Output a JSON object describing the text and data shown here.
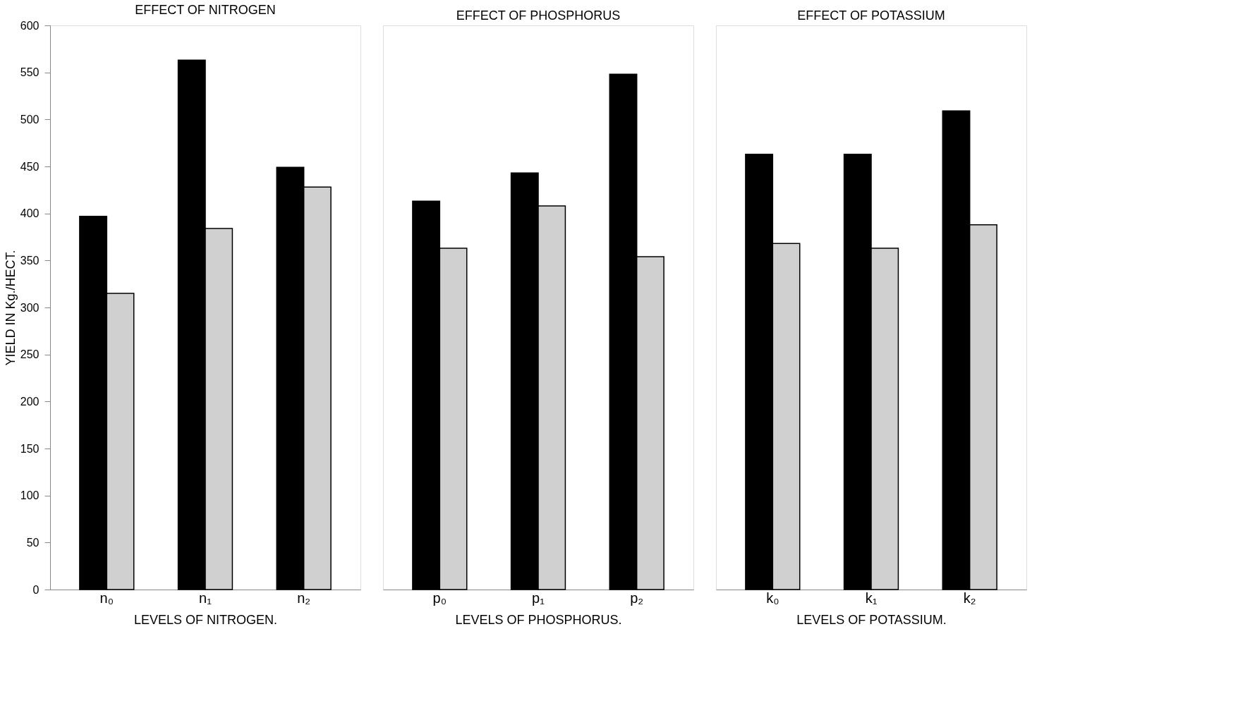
{
  "chart_data": [
    {
      "type": "bar",
      "title": "EFFECT OF NITROGEN",
      "xlabel": "LEVELS OF NITROGEN.",
      "ylabel": "YIELD IN Kg./HECT.",
      "categories": [
        "n₀",
        "n₁",
        "n₂"
      ],
      "ylim": [
        0,
        600
      ],
      "yticks": [
        0,
        50,
        100,
        150,
        200,
        250,
        300,
        350,
        400,
        450,
        500,
        550,
        600
      ],
      "grid": false,
      "legend": false,
      "series": [
        {
          "color": "#000000",
          "values": [
            397,
            563,
            449
          ]
        },
        {
          "color": "#d0d0d0",
          "values": [
            315,
            384,
            428
          ]
        }
      ]
    },
    {
      "type": "bar",
      "title": "EFFECT OF PHOSPHORUS",
      "xlabel": "LEVELS OF PHOSPHORUS.",
      "categories": [
        "p₀",
        "p₁",
        "p₂"
      ],
      "ylim": [
        0,
        600
      ],
      "tick_labels": "x",
      "grid": false,
      "legend": false,
      "series": [
        {
          "color": "#000000",
          "values": [
            413,
            443,
            548
          ]
        },
        {
          "color": "#d0d0d0",
          "values": [
            363,
            408,
            354
          ]
        }
      ]
    },
    {
      "type": "bar",
      "title": "EFFECT OF POTASSIUM",
      "xlabel": "LEVELS OF POTASSIUM.",
      "categories": [
        "k₀",
        "k₁",
        "k₂"
      ],
      "ylim": [
        0,
        600
      ],
      "tick_labels": "x",
      "grid": false,
      "legend": false,
      "series": [
        {
          "color": "#000000",
          "values": [
            463,
            463,
            509
          ]
        },
        {
          "color": "#d0d0d0",
          "values": [
            368,
            363,
            388
          ]
        }
      ]
    }
  ]
}
